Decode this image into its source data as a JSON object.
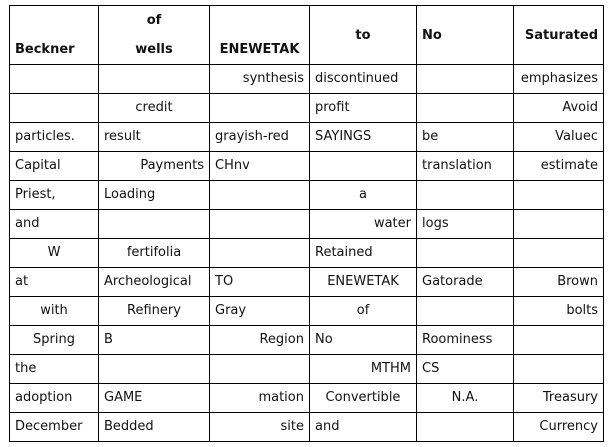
{
  "header": {
    "col2_top": "of",
    "col1": "Beckner",
    "col2": "wells",
    "col3": "ENEWETAK",
    "col4": "to",
    "col5": "No",
    "col6": "Saturated"
  },
  "rows": [
    [
      "",
      "",
      "synthesis",
      "discontinued",
      "",
      "emphasizes"
    ],
    [
      "",
      "credit",
      "",
      "profit",
      "",
      "Avoid"
    ],
    [
      "particles.",
      "result",
      "grayish-red",
      "SAYINGS",
      "be",
      "Valuec"
    ],
    [
      "Capital",
      "Payments",
      "CHnv",
      "",
      "translation",
      "estimate"
    ],
    [
      "Priest,",
      "Loading",
      "",
      "a",
      "",
      ""
    ],
    [
      "and",
      "",
      "",
      "water",
      "logs",
      ""
    ],
    [
      "W",
      "fertifolia",
      "",
      "Retained",
      "",
      ""
    ],
    [
      "at",
      "Archeological",
      "TO",
      "ENEWETAK",
      "Gatorade",
      "Brown"
    ],
    [
      "with",
      "Refinery",
      "Gray",
      "of",
      "",
      "bolts"
    ],
    [
      "Spring",
      "B",
      "Region",
      "No",
      "Roominess",
      ""
    ],
    [
      "the",
      "",
      "",
      "MTHM",
      "CS",
      ""
    ],
    [
      "adoption",
      "GAME",
      "mation",
      "Convertible",
      "N.A.",
      "Treasury"
    ],
    [
      "December",
      "Bedded",
      "site",
      "and",
      "",
      "Currency"
    ]
  ]
}
